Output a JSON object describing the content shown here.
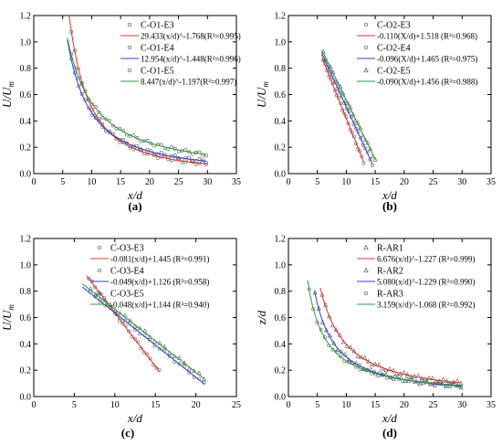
{
  "chart_data": [
    {
      "panel_label": "(a)",
      "type": "scatter",
      "xlabel": "x/d",
      "ylabel": "U/U_m",
      "xlim": [
        0,
        35
      ],
      "ylim": [
        0,
        1.2
      ],
      "xticks": [
        0,
        5,
        10,
        15,
        20,
        25,
        30,
        35
      ],
      "yticks": [
        0,
        0.2,
        0.4,
        0.6,
        0.8,
        1.0,
        1.2
      ],
      "ytick_labels": [
        "0.0",
        "0.2",
        "0.4",
        "0.6",
        "0.8",
        "1.0",
        "1.2"
      ],
      "legend_position": "top-right",
      "series": [
        {
          "name": "C-O1-E3",
          "marker": "circle",
          "color": "#555555",
          "fit": {
            "kind": "power",
            "a": 29.433,
            "b": -1.768,
            "range": [
              5.8,
              29.8
            ]
          },
          "x_range": [
            6.5,
            29.8
          ],
          "points": 40
        },
        {
          "name": "C-O1-E4",
          "marker": "circle",
          "color": "#555555",
          "fit": {
            "kind": "power",
            "a": 12.954,
            "b": -1.448,
            "range": [
              5.8,
              29.8
            ]
          },
          "x_range": [
            6.5,
            29.8
          ],
          "points": 40
        },
        {
          "name": "C-O1-E5",
          "marker": "circle",
          "color": "#555555",
          "fit": {
            "kind": "power",
            "a": 8.447,
            "b": -1.197,
            "range": [
              5.8,
              29.8
            ]
          },
          "x_range": [
            6.5,
            29.8
          ],
          "points": 40
        }
      ],
      "fits": [
        {
          "label": "29.433(x/d)^-1.768(R²=0.995)",
          "color": "#e8302a"
        },
        {
          "label": "12.954(x/d)^-1.448(R²=0.996)",
          "color": "#2b3fd6"
        },
        {
          "label": "8.447(x/d)^-1.197(R²=0.997)",
          "color": "#2a9d3a"
        }
      ]
    },
    {
      "panel_label": "(b)",
      "type": "scatter",
      "xlabel": "x/d",
      "ylabel": "U/U_m",
      "xlim": [
        0,
        35
      ],
      "ylim": [
        0,
        1.2
      ],
      "xticks": [
        0,
        5,
        10,
        15,
        20,
        25,
        30,
        35
      ],
      "yticks": [
        0,
        0.2,
        0.4,
        0.6,
        0.8,
        1.0,
        1.2
      ],
      "ytick_labels": [
        "0.0",
        "0.2",
        "0.4",
        "0.6",
        "0.8",
        "1.0",
        "1.2"
      ],
      "legend_position": "top-right",
      "series": [
        {
          "name": "C-O2-E3",
          "marker": "circle",
          "color": "#555555",
          "fit": {
            "kind": "linear",
            "m": -0.11,
            "c": 1.518,
            "range": [
              5.8,
              13.0
            ]
          },
          "x_range": [
            6.0,
            13.0
          ],
          "points": 22
        },
        {
          "name": "C-O2-E4",
          "marker": "circle",
          "color": "#555555",
          "fit": {
            "kind": "linear",
            "m": -0.096,
            "c": 1.465,
            "range": [
              5.8,
              14.5
            ]
          },
          "x_range": [
            6.0,
            14.5
          ],
          "points": 22
        },
        {
          "name": "C-O2-E5",
          "marker": "triangle",
          "color": "#555555",
          "fit": {
            "kind": "linear",
            "m": -0.09,
            "c": 1.456,
            "range": [
              5.8,
              15.0
            ]
          },
          "x_range": [
            6.0,
            15.0
          ],
          "points": 22
        }
      ],
      "fits": [
        {
          "label": "-0.110(X/d)+1.518 (R²=0.968)",
          "color": "#e8302a"
        },
        {
          "label": "-0.096(X/d)+1.465 (R²=0.975)",
          "color": "#2b3fd6"
        },
        {
          "label": "-0.090(X/d)+1.456 (R²=0.988)",
          "color": "#2a9d3a"
        }
      ]
    },
    {
      "panel_label": "(c)",
      "type": "scatter",
      "xlabel": "x/d",
      "ylabel": "U/U_m",
      "xlim": [
        0,
        25
      ],
      "ylim": [
        0,
        1.2
      ],
      "xticks": [
        0,
        5,
        10,
        15,
        20,
        25
      ],
      "yticks": [
        0,
        0.2,
        0.4,
        0.6,
        0.8,
        1.0,
        1.2
      ],
      "ytick_labels": [
        "0.0",
        "0.2",
        "0.4",
        "0.6",
        "0.8",
        "1.0",
        "1.2"
      ],
      "legend_position": "top-right",
      "series": [
        {
          "name": "C-O3-E3",
          "marker": "circle",
          "color": "#555555",
          "fit": {
            "kind": "linear",
            "m": -0.081,
            "c": 1.445,
            "range": [
              6.5,
              15.5
            ]
          },
          "x_range": [
            6.8,
            15.5
          ],
          "points": 24
        },
        {
          "name": "C-O3-E4",
          "marker": "circle",
          "color": "#555555",
          "fit": {
            "kind": "linear",
            "m": -0.049,
            "c": 1.126,
            "range": [
              6.0,
              21.0
            ]
          },
          "x_range": [
            7.0,
            21.0
          ],
          "points": 24
        },
        {
          "name": "C-O3-E5",
          "marker": "triangle",
          "color": "#555555",
          "fit": {
            "kind": "linear",
            "m": -0.048,
            "c": 1.144,
            "range": [
              6.0,
              21.0
            ]
          },
          "x_range": [
            7.0,
            21.0
          ],
          "points": 24
        }
      ],
      "fits": [
        {
          "label": "-0.081(x/d)+1.445 (R²=0.991)",
          "color": "#e8302a"
        },
        {
          "label": "-0.049(x/d)+1.126 (R²=0.958)",
          "color": "#2b3fd6"
        },
        {
          "label": "-0.048(x/d)+1.144 (R²=0.940)",
          "color": "#2a9d3a"
        }
      ]
    },
    {
      "panel_label": "(d)",
      "type": "scatter",
      "xlabel": "x/d",
      "ylabel": "z/d",
      "xlim": [
        0,
        35
      ],
      "ylim": [
        0,
        1.2
      ],
      "xticks": [
        0,
        5,
        10,
        15,
        20,
        25,
        30,
        35
      ],
      "yticks": [
        0,
        0.2,
        0.4,
        0.6,
        0.8,
        1.0,
        1.2
      ],
      "ytick_labels": [
        "0.0",
        "0.2",
        "0.4",
        "0.6",
        "0.8",
        "1.0",
        "1.2"
      ],
      "legend_position": "top-right",
      "series": [
        {
          "name": "R-AR1",
          "marker": "triangle",
          "color": "#555555",
          "fit": {
            "kind": "power",
            "a": 6.676,
            "b": -1.227,
            "range": [
              5.5,
              29.8
            ]
          },
          "x_range": [
            5.8,
            29.8
          ],
          "points": 40
        },
        {
          "name": "R-AR2",
          "marker": "triangle",
          "color": "#555555",
          "fit": {
            "kind": "power",
            "a": 5.08,
            "b": -1.229,
            "range": [
              4.5,
              29.8
            ]
          },
          "x_range": [
            4.6,
            29.8
          ],
          "points": 40
        },
        {
          "name": "R-AR3",
          "marker": "circle",
          "color": "#555555",
          "fit": {
            "kind": "power",
            "a": 3.159,
            "b": -1.068,
            "range": [
              3.3,
              29.8
            ]
          },
          "x_range": [
            3.6,
            29.8
          ],
          "points": 40
        }
      ],
      "fits": [
        {
          "label": "6.676(x/d)^-1.227 (R²=0.999)",
          "color": "#e8302a"
        },
        {
          "label": "5.080(x/d)^-1.229 (R²=0.990)",
          "color": "#2b3fd6"
        },
        {
          "label": "3.159(x/d)^-1.068 (R²=0.992)",
          "color": "#2a9d3a"
        }
      ]
    }
  ]
}
